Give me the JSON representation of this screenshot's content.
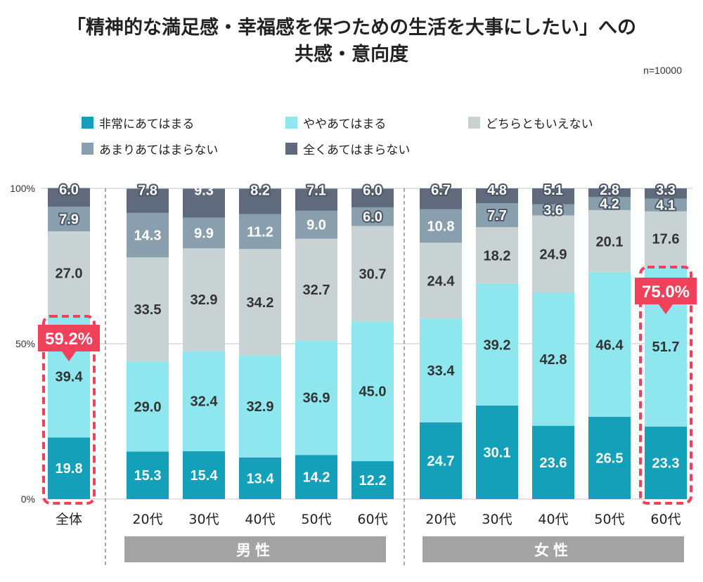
{
  "chart_data": {
    "type": "bar",
    "stacked": true,
    "title": "「精神的な満足感・幸福感を保つための生活を大事にしたい」への",
    "subtitle": "共感・意向度",
    "note": "n=10000",
    "ylim": [
      0,
      100
    ],
    "yticks": [
      "0%",
      "50%",
      "100%"
    ],
    "grid": true,
    "legend_position": "top",
    "categories": [
      "全体",
      "20代",
      "30代",
      "40代",
      "50代",
      "60代",
      "20代",
      "30代",
      "40代",
      "50代",
      "60代"
    ],
    "groups": [
      {
        "label": "男性",
        "categories": [
          1,
          2,
          3,
          4,
          5
        ]
      },
      {
        "label": "女性",
        "categories": [
          6,
          7,
          8,
          9,
          10
        ]
      }
    ],
    "series": [
      {
        "name": "非常にあてはまる",
        "color": "#13a0b8",
        "values": [
          19.8,
          15.3,
          15.4,
          13.4,
          14.2,
          12.2,
          24.7,
          30.1,
          23.6,
          26.5,
          23.3
        ]
      },
      {
        "name": "ややあてはまる",
        "color": "#8ee6ee",
        "values": [
          39.4,
          29.0,
          32.4,
          32.9,
          36.9,
          45.0,
          33.4,
          39.2,
          42.8,
          46.4,
          51.7
        ]
      },
      {
        "name": "どちらともいえない",
        "color": "#c9d2d2",
        "values": [
          27.0,
          33.5,
          32.9,
          34.2,
          32.7,
          30.7,
          24.4,
          18.2,
          24.9,
          20.1,
          17.6
        ]
      },
      {
        "name": "あまりあてはまらない",
        "color": "#8a9fae",
        "values": [
          7.9,
          14.3,
          9.9,
          11.2,
          9.0,
          6.0,
          10.8,
          7.7,
          3.6,
          4.2,
          4.1
        ]
      },
      {
        "name": "全くあてはまらない",
        "color": "#5f6b7c",
        "values": [
          6.0,
          7.8,
          9.3,
          8.2,
          7.1,
          6.0,
          6.7,
          4.8,
          5.1,
          2.8,
          3.3
        ]
      }
    ],
    "highlights": [
      {
        "category": 0,
        "label": "59.2%",
        "color": "#f0415a"
      },
      {
        "category": 10,
        "label": "75.0%",
        "color": "#f0415a"
      }
    ]
  }
}
